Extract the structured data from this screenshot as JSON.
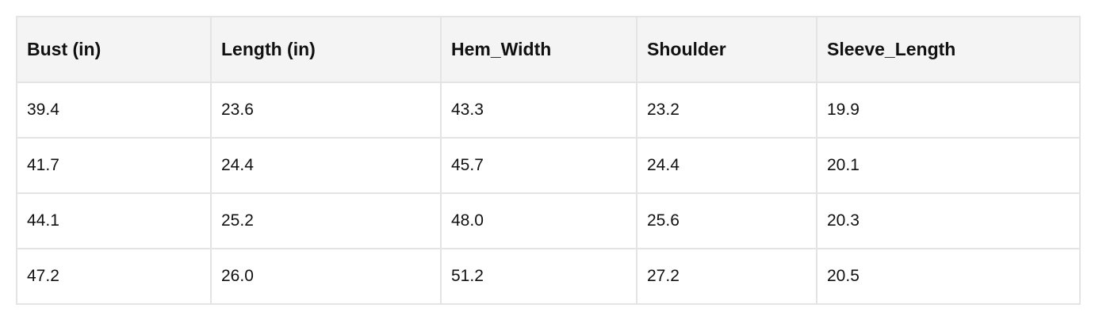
{
  "table": {
    "header": [
      "Bust (in)",
      "Length (in)",
      "Hem_Width",
      "Shoulder",
      "Sleeve_Length"
    ],
    "rows": [
      [
        "39.4",
        "23.6",
        "43.3",
        "23.2",
        "19.9"
      ],
      [
        "41.7",
        "24.4",
        "45.7",
        "24.4",
        "20.1"
      ],
      [
        "44.1",
        "25.2",
        "48.0",
        "25.6",
        "20.3"
      ],
      [
        "47.2",
        "26.0",
        "51.2",
        "27.2",
        "20.5"
      ]
    ]
  }
}
